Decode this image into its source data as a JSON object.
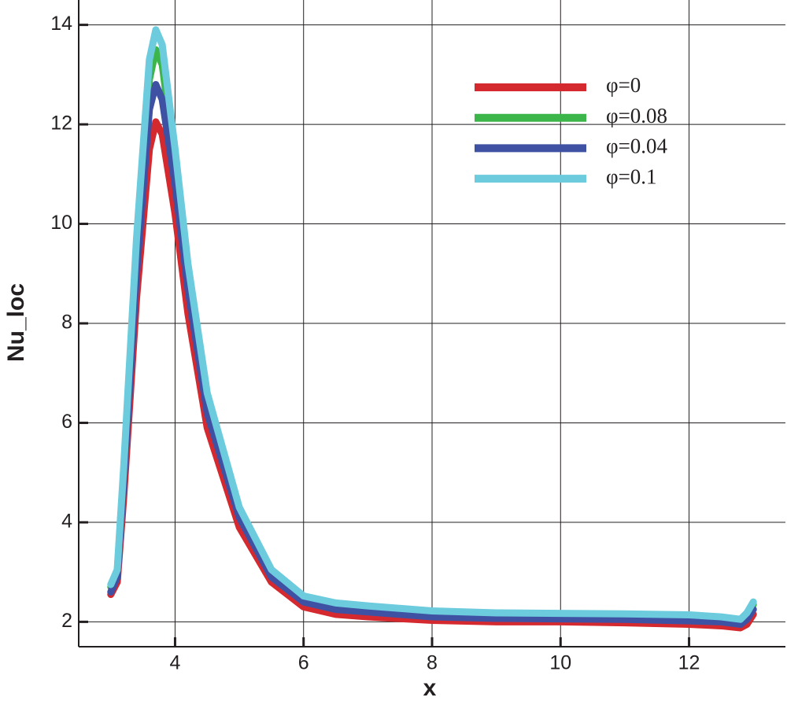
{
  "chart_data": {
    "type": "line",
    "x_label": "x",
    "y_label": "Nu_loc",
    "x": [
      3,
      3.1,
      3.2,
      3.4,
      3.6,
      3.7,
      3.8,
      4,
      4.2,
      4.5,
      5,
      5.5,
      6,
      6.5,
      7,
      8,
      9,
      10,
      11,
      12,
      12.5,
      12.8,
      12.9,
      13
    ],
    "series": [
      {
        "name": "φ=0",
        "color": "#d42a2f",
        "values": [
          2.55,
          2.8,
          4.5,
          8.5,
          11.5,
          12.05,
          11.8,
          10.2,
          8.2,
          5.9,
          3.9,
          2.8,
          2.3,
          2.15,
          2.1,
          2.03,
          2.0,
          2.0,
          1.98,
          1.95,
          1.92,
          1.88,
          1.95,
          2.15
        ]
      },
      {
        "name": "φ=0.08",
        "color": "#3cb54a",
        "values": [
          2.7,
          3.0,
          5.0,
          9.4,
          12.9,
          13.5,
          13.2,
          11.2,
          9.0,
          6.4,
          4.2,
          3.0,
          2.48,
          2.33,
          2.27,
          2.18,
          2.14,
          2.13,
          2.12,
          2.1,
          2.07,
          2.02,
          2.12,
          2.35
        ]
      },
      {
        "name": "φ=0.04",
        "color": "#3f51a3",
        "values": [
          2.6,
          2.9,
          4.8,
          9.0,
          12.3,
          12.8,
          12.5,
          10.8,
          8.7,
          6.2,
          4.1,
          2.9,
          2.4,
          2.25,
          2.2,
          2.1,
          2.07,
          2.06,
          2.05,
          2.02,
          2.0,
          1.95,
          2.05,
          2.25
        ]
      },
      {
        "name": "φ=0.1",
        "color": "#6ccbdc",
        "values": [
          2.75,
          3.05,
          5.1,
          9.7,
          13.3,
          13.9,
          13.6,
          11.5,
          9.2,
          6.6,
          4.3,
          3.05,
          2.52,
          2.38,
          2.32,
          2.22,
          2.18,
          2.17,
          2.16,
          2.14,
          2.1,
          2.05,
          2.18,
          2.4
        ]
      }
    ],
    "xlim": [
      2.5,
      13.5
    ],
    "ylim": [
      1.5,
      14.5
    ],
    "xticks": [
      4,
      6,
      8,
      10,
      12
    ],
    "yticks": [
      2,
      4,
      6,
      8,
      10,
      12,
      14
    ],
    "grid": true,
    "legend": "upper right"
  }
}
